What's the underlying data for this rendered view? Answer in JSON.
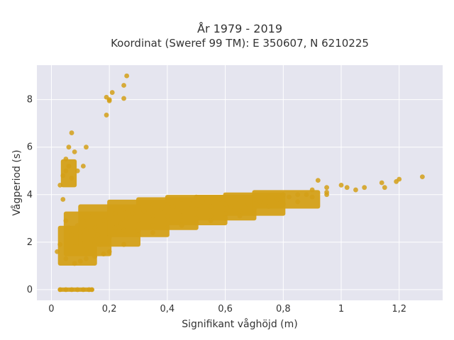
{
  "chart_data": {
    "type": "scatter",
    "title_line1": "År 1979 - 2019",
    "title_line2": "Koordinat (Sweref 99 TM): E 350607, N 6210225",
    "xlabel": "Signifikant våghöjd (m)",
    "ylabel": "Vågperiod (s)",
    "xlim": [
      -0.05,
      1.35
    ],
    "ylim": [
      -0.45,
      9.45
    ],
    "x_ticks": [
      0,
      0.2,
      0.4,
      0.6,
      0.8,
      1.0,
      1.2
    ],
    "x_tick_labels": [
      "0",
      "0,2",
      "0,4",
      "0,6",
      "0,8",
      "1",
      "1,2"
    ],
    "y_ticks": [
      0,
      2,
      4,
      6,
      8
    ],
    "y_tick_labels": [
      "0",
      "2",
      "4",
      "6",
      "8"
    ],
    "grid": true,
    "colors": {
      "marker": "#d4a017",
      "plot_bg": "#e5e5ef",
      "grid": "#ffffff"
    },
    "points": [
      [
        0.03,
        0.0
      ],
      [
        0.05,
        0.0
      ],
      [
        0.07,
        0.0
      ],
      [
        0.09,
        0.0
      ],
      [
        0.11,
        0.0
      ],
      [
        0.13,
        0.0
      ],
      [
        0.14,
        0.0
      ],
      [
        0.02,
        1.6
      ],
      [
        0.03,
        1.9
      ],
      [
        0.03,
        4.4
      ],
      [
        0.04,
        4.8
      ],
      [
        0.05,
        5.0
      ],
      [
        0.05,
        5.5
      ],
      [
        0.06,
        6.0
      ],
      [
        0.06,
        5.2
      ],
      [
        0.07,
        6.6
      ],
      [
        0.07,
        4.7
      ],
      [
        0.08,
        5.8
      ],
      [
        0.09,
        5.0
      ],
      [
        0.11,
        5.2
      ],
      [
        0.12,
        6.0
      ],
      [
        0.04,
        3.8
      ],
      [
        0.05,
        2.9
      ],
      [
        0.06,
        2.6
      ],
      [
        0.07,
        2.3
      ],
      [
        0.05,
        1.3
      ],
      [
        0.08,
        1.1
      ],
      [
        0.1,
        1.2
      ],
      [
        0.12,
        1.3
      ],
      [
        0.15,
        1.4
      ],
      [
        0.18,
        1.5
      ],
      [
        0.2,
        1.6
      ],
      [
        0.25,
        1.9
      ],
      [
        0.1,
        2.4
      ],
      [
        0.12,
        2.5
      ],
      [
        0.15,
        2.6
      ],
      [
        0.18,
        2.9
      ],
      [
        0.2,
        3.0
      ],
      [
        0.22,
        3.2
      ],
      [
        0.25,
        3.4
      ],
      [
        0.15,
        2.0
      ],
      [
        0.2,
        2.2
      ],
      [
        0.25,
        2.5
      ],
      [
        0.3,
        2.5
      ],
      [
        0.3,
        2.9
      ],
      [
        0.3,
        3.5
      ],
      [
        0.35,
        2.7
      ],
      [
        0.35,
        3.1
      ],
      [
        0.35,
        3.6
      ],
      [
        0.4,
        2.8
      ],
      [
        0.4,
        3.1
      ],
      [
        0.4,
        3.6
      ],
      [
        0.45,
        2.9
      ],
      [
        0.45,
        3.3
      ],
      [
        0.45,
        3.8
      ],
      [
        0.5,
        3.0
      ],
      [
        0.5,
        3.4
      ],
      [
        0.5,
        3.9
      ],
      [
        0.55,
        3.1
      ],
      [
        0.55,
        3.5
      ],
      [
        0.6,
        3.2
      ],
      [
        0.6,
        3.6
      ],
      [
        0.6,
        3.9
      ],
      [
        0.65,
        3.3
      ],
      [
        0.65,
        3.7
      ],
      [
        0.7,
        3.4
      ],
      [
        0.7,
        3.8
      ],
      [
        0.75,
        3.5
      ],
      [
        0.75,
        3.9
      ],
      [
        0.8,
        3.6
      ],
      [
        0.8,
        4.0
      ],
      [
        0.85,
        3.7
      ],
      [
        0.85,
        4.0
      ],
      [
        0.9,
        3.9
      ],
      [
        0.9,
        4.2
      ],
      [
        0.95,
        4.0
      ],
      [
        0.95,
        4.3
      ],
      [
        1.0,
        4.4
      ],
      [
        1.02,
        4.3
      ],
      [
        1.05,
        4.2
      ],
      [
        1.08,
        4.3
      ],
      [
        1.14,
        4.5
      ],
      [
        1.15,
        4.3
      ],
      [
        1.19,
        4.55
      ],
      [
        1.2,
        4.65
      ],
      [
        1.28,
        4.75
      ],
      [
        0.92,
        4.6
      ],
      [
        0.95,
        4.1
      ],
      [
        0.19,
        8.1
      ],
      [
        0.2,
        8.0
      ],
      [
        0.21,
        8.3
      ],
      [
        0.2,
        7.95
      ],
      [
        0.25,
        8.6
      ],
      [
        0.26,
        9.0
      ],
      [
        0.25,
        8.05
      ],
      [
        0.19,
        7.35
      ],
      [
        0.08,
        1.8
      ],
      [
        0.1,
        2.0
      ],
      [
        0.12,
        1.7
      ],
      [
        0.14,
        2.1
      ],
      [
        0.16,
        2.3
      ],
      [
        0.17,
        1.9
      ],
      [
        0.09,
        2.7
      ],
      [
        0.11,
        2.9
      ],
      [
        0.13,
        3.1
      ],
      [
        0.22,
        2.6
      ],
      [
        0.24,
        2.8
      ],
      [
        0.26,
        3.0
      ],
      [
        0.28,
        3.2
      ],
      [
        0.32,
        3.3
      ],
      [
        0.38,
        3.4
      ],
      [
        0.42,
        3.5
      ],
      [
        0.48,
        3.6
      ],
      [
        0.52,
        3.7
      ],
      [
        0.58,
        3.8
      ],
      [
        0.62,
        3.5
      ],
      [
        0.68,
        3.6
      ],
      [
        0.72,
        3.7
      ],
      [
        0.78,
        3.8
      ],
      [
        0.82,
        3.9
      ],
      [
        0.88,
        4.0
      ],
      [
        0.3,
        2.3
      ],
      [
        0.35,
        2.4
      ],
      [
        0.4,
        2.6
      ],
      [
        0.45,
        2.7
      ],
      [
        0.5,
        2.8
      ],
      [
        0.55,
        2.9
      ],
      [
        0.6,
        3.0
      ],
      [
        0.65,
        3.1
      ],
      [
        0.7,
        3.2
      ]
    ],
    "bands": [
      {
        "x0": 0.03,
        "x1": 0.15,
        "y0": 1.1,
        "y1": 2.6
      },
      {
        "x0": 0.05,
        "x1": 0.2,
        "y0": 1.5,
        "y1": 3.2
      },
      {
        "x0": 0.1,
        "x1": 0.3,
        "y0": 1.9,
        "y1": 3.5
      },
      {
        "x0": 0.2,
        "x1": 0.4,
        "y0": 2.3,
        "y1": 3.7
      },
      {
        "x0": 0.3,
        "x1": 0.5,
        "y0": 2.6,
        "y1": 3.8
      },
      {
        "x0": 0.4,
        "x1": 0.6,
        "y0": 2.8,
        "y1": 3.9
      },
      {
        "x0": 0.5,
        "x1": 0.7,
        "y0": 3.0,
        "y1": 3.9
      },
      {
        "x0": 0.6,
        "x1": 0.8,
        "y0": 3.2,
        "y1": 4.0
      },
      {
        "x0": 0.7,
        "x1": 0.92,
        "y0": 3.5,
        "y1": 4.1
      },
      {
        "x0": 0.04,
        "x1": 0.08,
        "y0": 4.4,
        "y1": 5.4
      },
      {
        "x0": 0.03,
        "x1": 0.14,
        "y0": 0.0,
        "y1": 0.0
      }
    ]
  }
}
